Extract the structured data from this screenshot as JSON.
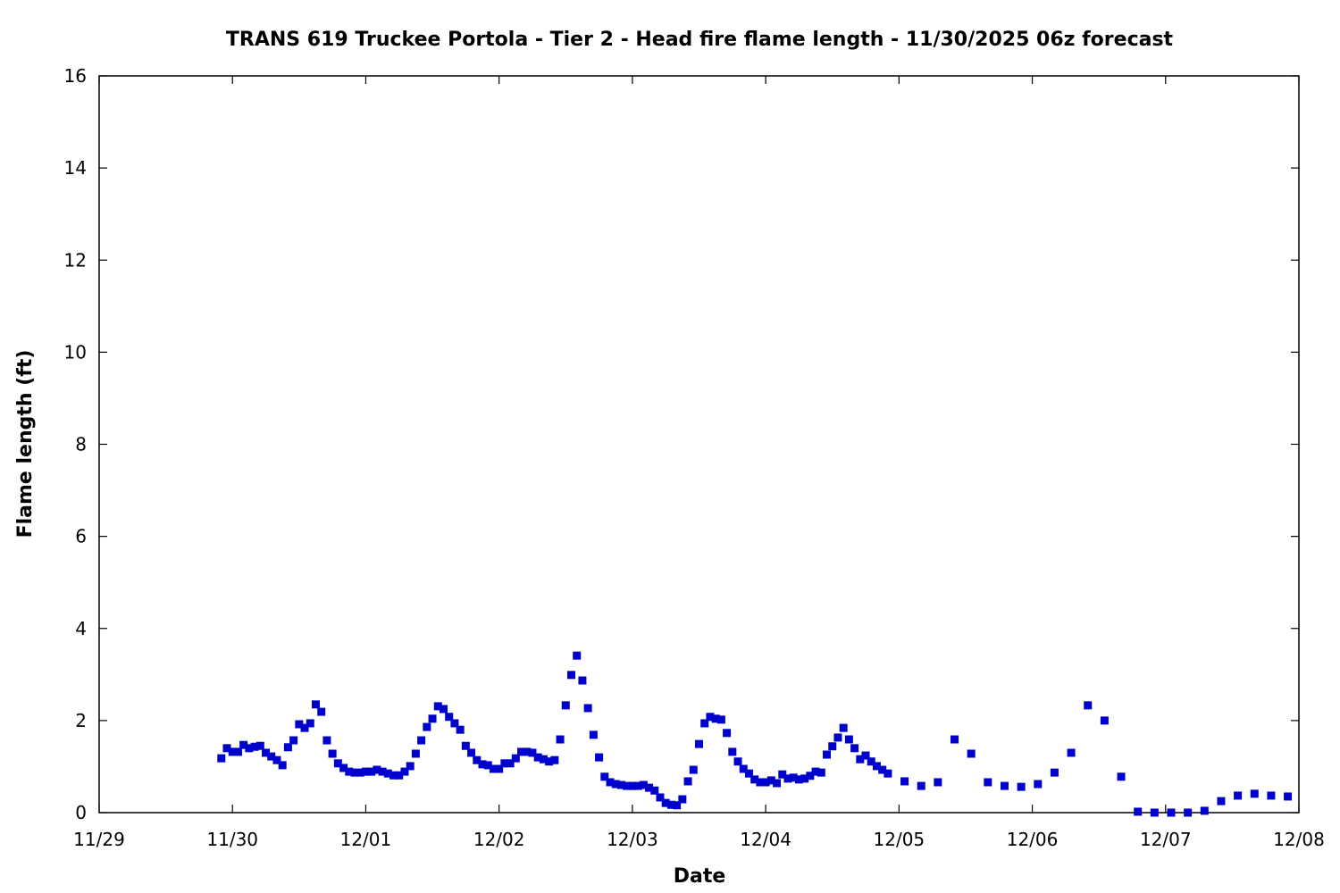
{
  "chart_data": {
    "type": "scatter",
    "title": "TRANS 619 Truckee Portola - Tier 2 - Head fire flame length - 11/30/2025 06z forecast",
    "xlabel": "Date",
    "ylabel": "Flame length (ft)",
    "xlim": [
      "2025-11-29T00:00",
      "2025-12-08T00:00"
    ],
    "ylim": [
      0,
      16
    ],
    "x_tick_labels": [
      "11/29",
      "11/30",
      "12/01",
      "12/02",
      "12/03",
      "12/04",
      "12/05",
      "12/06",
      "12/07",
      "12/08"
    ],
    "y_tick_labels": [
      "0",
      "2",
      "4",
      "6",
      "8",
      "10",
      "12",
      "14",
      "16"
    ],
    "grid": false,
    "marker": "square",
    "color": "#0000cc",
    "series": [
      {
        "points": [
          [
            "2025-11-29T22:00",
            1.18
          ],
          [
            "2025-11-29T23:00",
            1.4
          ],
          [
            "2025-11-30T00:00",
            1.32
          ],
          [
            "2025-11-30T01:00",
            1.32
          ],
          [
            "2025-11-30T02:00",
            1.47
          ],
          [
            "2025-11-30T03:00",
            1.4
          ],
          [
            "2025-11-30T04:00",
            1.43
          ],
          [
            "2025-11-30T05:00",
            1.45
          ],
          [
            "2025-11-30T06:00",
            1.3
          ],
          [
            "2025-11-30T07:00",
            1.22
          ],
          [
            "2025-11-30T08:00",
            1.14
          ],
          [
            "2025-11-30T09:00",
            1.03
          ],
          [
            "2025-11-30T10:00",
            1.42
          ],
          [
            "2025-11-30T11:00",
            1.57
          ],
          [
            "2025-11-30T12:00",
            1.92
          ],
          [
            "2025-11-30T13:00",
            1.84
          ],
          [
            "2025-11-30T14:00",
            1.94
          ],
          [
            "2025-11-30T15:00",
            2.35
          ],
          [
            "2025-11-30T16:00",
            2.19
          ],
          [
            "2025-11-30T17:00",
            1.57
          ],
          [
            "2025-11-30T18:00",
            1.28
          ],
          [
            "2025-11-30T19:00",
            1.07
          ],
          [
            "2025-11-30T20:00",
            0.97
          ],
          [
            "2025-11-30T21:00",
            0.89
          ],
          [
            "2025-11-30T22:00",
            0.87
          ],
          [
            "2025-11-30T23:00",
            0.87
          ],
          [
            "2025-12-01T00:00",
            0.89
          ],
          [
            "2025-12-01T01:00",
            0.89
          ],
          [
            "2025-12-01T02:00",
            0.93
          ],
          [
            "2025-12-01T03:00",
            0.89
          ],
          [
            "2025-12-01T04:00",
            0.85
          ],
          [
            "2025-12-01T05:00",
            0.81
          ],
          [
            "2025-12-01T06:00",
            0.81
          ],
          [
            "2025-12-01T07:00",
            0.89
          ],
          [
            "2025-12-01T08:00",
            1.01
          ],
          [
            "2025-12-01T09:00",
            1.28
          ],
          [
            "2025-12-01T10:00",
            1.57
          ],
          [
            "2025-12-01T11:00",
            1.86
          ],
          [
            "2025-12-01T12:00",
            2.04
          ],
          [
            "2025-12-01T13:00",
            2.31
          ],
          [
            "2025-12-01T14:00",
            2.25
          ],
          [
            "2025-12-01T15:00",
            2.08
          ],
          [
            "2025-12-01T16:00",
            1.94
          ],
          [
            "2025-12-01T17:00",
            1.8
          ],
          [
            "2025-12-01T18:00",
            1.45
          ],
          [
            "2025-12-01T19:00",
            1.3
          ],
          [
            "2025-12-01T20:00",
            1.14
          ],
          [
            "2025-12-01T21:00",
            1.05
          ],
          [
            "2025-12-01T22:00",
            1.03
          ],
          [
            "2025-12-01T23:00",
            0.95
          ],
          [
            "2025-12-02T00:00",
            0.95
          ],
          [
            "2025-12-02T01:00",
            1.07
          ],
          [
            "2025-12-02T02:00",
            1.07
          ],
          [
            "2025-12-02T03:00",
            1.18
          ],
          [
            "2025-12-02T04:00",
            1.32
          ],
          [
            "2025-12-02T05:00",
            1.32
          ],
          [
            "2025-12-02T06:00",
            1.3
          ],
          [
            "2025-12-02T07:00",
            1.2
          ],
          [
            "2025-12-02T08:00",
            1.16
          ],
          [
            "2025-12-02T09:00",
            1.11
          ],
          [
            "2025-12-02T10:00",
            1.14
          ],
          [
            "2025-12-02T11:00",
            1.59
          ],
          [
            "2025-12-02T12:00",
            2.33
          ],
          [
            "2025-12-02T13:00",
            2.99
          ],
          [
            "2025-12-02T14:00",
            3.41
          ],
          [
            "2025-12-02T15:00",
            2.87
          ],
          [
            "2025-12-02T16:00",
            2.27
          ],
          [
            "2025-12-02T17:00",
            1.69
          ],
          [
            "2025-12-02T18:00",
            1.2
          ],
          [
            "2025-12-02T19:00",
            0.78
          ],
          [
            "2025-12-02T20:00",
            0.66
          ],
          [
            "2025-12-02T21:00",
            0.62
          ],
          [
            "2025-12-02T22:00",
            0.6
          ],
          [
            "2025-12-02T23:00",
            0.58
          ],
          [
            "2025-12-03T00:00",
            0.58
          ],
          [
            "2025-12-03T01:00",
            0.58
          ],
          [
            "2025-12-03T02:00",
            0.6
          ],
          [
            "2025-12-03T03:00",
            0.54
          ],
          [
            "2025-12-03T04:00",
            0.48
          ],
          [
            "2025-12-03T05:00",
            0.33
          ],
          [
            "2025-12-03T06:00",
            0.21
          ],
          [
            "2025-12-03T07:00",
            0.17
          ],
          [
            "2025-12-03T08:00",
            0.16
          ],
          [
            "2025-12-03T09:00",
            0.29
          ],
          [
            "2025-12-03T10:00",
            0.68
          ],
          [
            "2025-12-03T11:00",
            0.93
          ],
          [
            "2025-12-03T12:00",
            1.49
          ],
          [
            "2025-12-03T13:00",
            1.94
          ],
          [
            "2025-12-03T14:00",
            2.08
          ],
          [
            "2025-12-03T15:00",
            2.04
          ],
          [
            "2025-12-03T16:00",
            2.02
          ],
          [
            "2025-12-03T17:00",
            1.73
          ],
          [
            "2025-12-03T18:00",
            1.32
          ],
          [
            "2025-12-03T19:00",
            1.11
          ],
          [
            "2025-12-03T20:00",
            0.95
          ],
          [
            "2025-12-03T21:00",
            0.85
          ],
          [
            "2025-12-03T22:00",
            0.72
          ],
          [
            "2025-12-03T23:00",
            0.66
          ],
          [
            "2025-12-04T00:00",
            0.66
          ],
          [
            "2025-12-04T01:00",
            0.7
          ],
          [
            "2025-12-04T02:00",
            0.64
          ],
          [
            "2025-12-04T03:00",
            0.83
          ],
          [
            "2025-12-04T04:00",
            0.74
          ],
          [
            "2025-12-04T05:00",
            0.76
          ],
          [
            "2025-12-04T06:00",
            0.72
          ],
          [
            "2025-12-04T07:00",
            0.74
          ],
          [
            "2025-12-04T08:00",
            0.8
          ],
          [
            "2025-12-04T09:00",
            0.89
          ],
          [
            "2025-12-04T10:00",
            0.87
          ],
          [
            "2025-12-04T11:00",
            1.26
          ],
          [
            "2025-12-04T12:00",
            1.44
          ],
          [
            "2025-12-04T13:00",
            1.63
          ],
          [
            "2025-12-04T14:00",
            1.84
          ],
          [
            "2025-12-04T15:00",
            1.59
          ],
          [
            "2025-12-04T16:00",
            1.4
          ],
          [
            "2025-12-04T17:00",
            1.16
          ],
          [
            "2025-12-04T18:00",
            1.24
          ],
          [
            "2025-12-04T19:00",
            1.11
          ],
          [
            "2025-12-04T20:00",
            1.01
          ],
          [
            "2025-12-04T21:00",
            0.93
          ],
          [
            "2025-12-04T22:00",
            0.85
          ],
          [
            "2025-12-05T01:00",
            0.68
          ],
          [
            "2025-12-05T04:00",
            0.58
          ],
          [
            "2025-12-05T07:00",
            0.66
          ],
          [
            "2025-12-05T10:00",
            1.59
          ],
          [
            "2025-12-05T13:00",
            1.28
          ],
          [
            "2025-12-05T16:00",
            0.66
          ],
          [
            "2025-12-05T19:00",
            0.58
          ],
          [
            "2025-12-05T22:00",
            0.56
          ],
          [
            "2025-12-06T01:00",
            0.62
          ],
          [
            "2025-12-06T04:00",
            0.87
          ],
          [
            "2025-12-06T07:00",
            1.3
          ],
          [
            "2025-12-06T10:00",
            2.33
          ],
          [
            "2025-12-06T13:00",
            2.0
          ],
          [
            "2025-12-06T16:00",
            0.78
          ],
          [
            "2025-12-06T19:00",
            0.02
          ],
          [
            "2025-12-06T22:00",
            0.0
          ],
          [
            "2025-12-07T01:00",
            0.0
          ],
          [
            "2025-12-07T04:00",
            0.0
          ],
          [
            "2025-12-07T07:00",
            0.04
          ],
          [
            "2025-12-07T10:00",
            0.25
          ],
          [
            "2025-12-07T13:00",
            0.37
          ],
          [
            "2025-12-07T16:00",
            0.41
          ],
          [
            "2025-12-07T19:00",
            0.37
          ],
          [
            "2025-12-07T22:00",
            0.35
          ]
        ]
      }
    ]
  }
}
